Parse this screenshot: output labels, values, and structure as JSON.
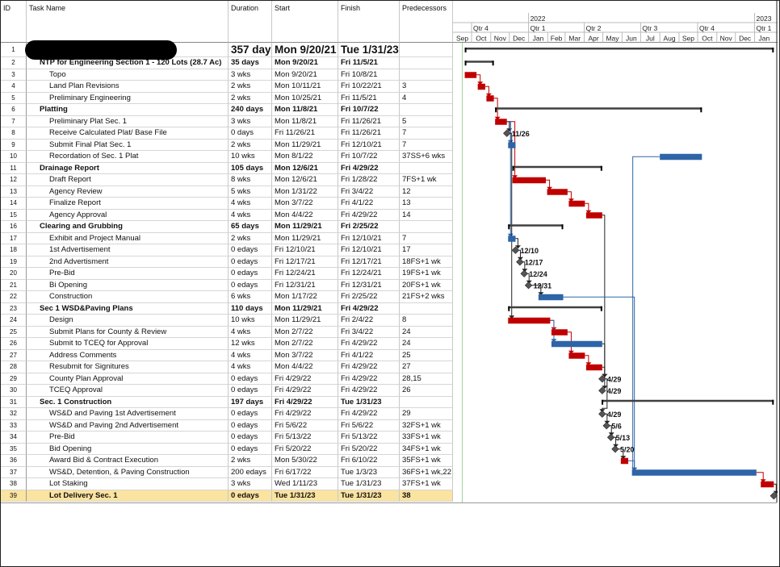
{
  "columns": {
    "id": "ID",
    "name": "Task Name",
    "duration": "Duration",
    "start": "Start",
    "finish": "Finish",
    "predecessors": "Predecessors"
  },
  "timescale": {
    "years": [
      {
        "label": "2022",
        "month_index": 4
      },
      {
        "label": "2023",
        "month_index": 16
      }
    ],
    "quarters": [
      {
        "label": "Qtr 4",
        "month_index": 1
      },
      {
        "label": "Qtr 1",
        "month_index": 4
      },
      {
        "label": "Qtr 2",
        "month_index": 7
      },
      {
        "label": "Qtr 3",
        "month_index": 10
      },
      {
        "label": "Qtr 4",
        "month_index": 13
      },
      {
        "label": "Qtr 1",
        "month_index": 16
      }
    ],
    "months": [
      "Sep",
      "Oct",
      "Nov",
      "Dec",
      "Jan",
      "Feb",
      "Mar",
      "Apr",
      "May",
      "Jun",
      "Jul",
      "Aug",
      "Sep",
      "Oct",
      "Nov",
      "Dec",
      "Jan"
    ],
    "first_month": "9/1/21"
  },
  "colors": {
    "critical": "#c00000",
    "normal": "#2e64a8",
    "summary": "#404040",
    "milestone": "#555555",
    "highlight": "#fbe3a0",
    "status_line": "#9fd49f"
  },
  "tasks": [
    {
      "id": "1",
      "name": "",
      "redacted": true,
      "duration": "357 days",
      "start": "Mon 9/20/21",
      "finish": "Tue 1/31/23",
      "pred": "",
      "level": 0,
      "type": "summary"
    },
    {
      "id": "2",
      "name": "NTP for Engineering Section 1 - 120 Lots (28.7 Ac)",
      "duration": "35 days",
      "start": "Mon 9/20/21",
      "finish": "Fri 11/5/21",
      "pred": "",
      "level": 1,
      "type": "summary"
    },
    {
      "id": "3",
      "name": "Topo",
      "duration": "3 wks",
      "start": "Mon 9/20/21",
      "finish": "Fri 10/8/21",
      "pred": "",
      "level": 2,
      "type": "critical"
    },
    {
      "id": "4",
      "name": "Land Plan Revisions",
      "duration": "2 wks",
      "start": "Mon 10/11/21",
      "finish": "Fri 10/22/21",
      "pred": "3",
      "level": 2,
      "type": "critical"
    },
    {
      "id": "5",
      "name": "Preliminary Engineering",
      "duration": "2 wks",
      "start": "Mon 10/25/21",
      "finish": "Fri 11/5/21",
      "pred": "4",
      "level": 2,
      "type": "critical"
    },
    {
      "id": "6",
      "name": "Platting",
      "duration": "240 days",
      "start": "Mon 11/8/21",
      "finish": "Fri 10/7/22",
      "pred": "",
      "level": 1,
      "type": "summary"
    },
    {
      "id": "7",
      "name": "Preliminary Plat Sec. 1",
      "duration": "3 wks",
      "start": "Mon 11/8/21",
      "finish": "Fri 11/26/21",
      "pred": "5",
      "level": 2,
      "type": "critical"
    },
    {
      "id": "8",
      "name": "Receive Calculated Plat/ Base File",
      "duration": "0 days",
      "start": "Fri 11/26/21",
      "finish": "Fri 11/26/21",
      "pred": "7",
      "level": 2,
      "type": "milestone",
      "label": "11/26"
    },
    {
      "id": "9",
      "name": "Submit Final Plat Sec. 1",
      "duration": "2 wks",
      "start": "Mon 11/29/21",
      "finish": "Fri 12/10/21",
      "pred": "7",
      "level": 2,
      "type": "normal"
    },
    {
      "id": "10",
      "name": "Recordation of Sec. 1 Plat",
      "duration": "10 wks",
      "start": "Mon 8/1/22",
      "finish": "Fri 10/7/22",
      "pred": "37SS+6 wks",
      "level": 2,
      "type": "normal"
    },
    {
      "id": "11",
      "name": "Drainage Report",
      "duration": "105 days",
      "start": "Mon 12/6/21",
      "finish": "Fri 4/29/22",
      "pred": "",
      "level": 1,
      "type": "summary"
    },
    {
      "id": "12",
      "name": "Draft Report",
      "duration": "8 wks",
      "start": "Mon 12/6/21",
      "finish": "Fri 1/28/22",
      "pred": "7FS+1 wk",
      "level": 2,
      "type": "critical"
    },
    {
      "id": "13",
      "name": "Agency Review",
      "duration": "5 wks",
      "start": "Mon 1/31/22",
      "finish": "Fri 3/4/22",
      "pred": "12",
      "level": 2,
      "type": "critical"
    },
    {
      "id": "14",
      "name": "Finalize Report",
      "duration": "4 wks",
      "start": "Mon 3/7/22",
      "finish": "Fri 4/1/22",
      "pred": "13",
      "level": 2,
      "type": "critical"
    },
    {
      "id": "15",
      "name": "Agency Approval",
      "duration": "4 wks",
      "start": "Mon 4/4/22",
      "finish": "Fri 4/29/22",
      "pred": "14",
      "level": 2,
      "type": "critical"
    },
    {
      "id": "16",
      "name": "Clearing and Grubbing",
      "duration": "65 days",
      "start": "Mon 11/29/21",
      "finish": "Fri 2/25/22",
      "pred": "",
      "level": 1,
      "type": "summary"
    },
    {
      "id": "17",
      "name": "Exhibit and Project Manual",
      "duration": "2 wks",
      "start": "Mon 11/29/21",
      "finish": "Fri 12/10/21",
      "pred": "7",
      "level": 2,
      "type": "normal"
    },
    {
      "id": "18",
      "name": "1st Advertisement",
      "duration": "0 edays",
      "start": "Fri 12/10/21",
      "finish": "Fri 12/10/21",
      "pred": "17",
      "level": 2,
      "type": "milestone",
      "label": "12/10"
    },
    {
      "id": "19",
      "name": "2nd Advertisment",
      "duration": "0 edays",
      "start": "Fri 12/17/21",
      "finish": "Fri 12/17/21",
      "pred": "18FS+1 wk",
      "level": 2,
      "type": "milestone",
      "label": "12/17"
    },
    {
      "id": "20",
      "name": "Pre-Bid",
      "duration": "0 edays",
      "start": "Fri 12/24/21",
      "finish": "Fri 12/24/21",
      "pred": "19FS+1 wk",
      "level": 2,
      "type": "milestone",
      "label": "12/24"
    },
    {
      "id": "21",
      "name": "Bi Opening",
      "duration": "0 edays",
      "start": "Fri 12/31/21",
      "finish": "Fri 12/31/21",
      "pred": "20FS+1 wk",
      "level": 2,
      "type": "milestone",
      "label": "12/31"
    },
    {
      "id": "22",
      "name": "Construction",
      "duration": "6 wks",
      "start": "Mon 1/17/22",
      "finish": "Fri 2/25/22",
      "pred": "21FS+2 wks",
      "level": 2,
      "type": "normal"
    },
    {
      "id": "23",
      "name": "Sec 1 WSD&Paving Plans",
      "duration": "110 days",
      "start": "Mon 11/29/21",
      "finish": "Fri 4/29/22",
      "pred": "",
      "level": 1,
      "type": "summary"
    },
    {
      "id": "24",
      "name": "Design",
      "duration": "10 wks",
      "start": "Mon 11/29/21",
      "finish": "Fri 2/4/22",
      "pred": "8",
      "level": 2,
      "type": "critical"
    },
    {
      "id": "25",
      "name": "Submit Plans for County & Review",
      "duration": "4 wks",
      "start": "Mon 2/7/22",
      "finish": "Fri 3/4/22",
      "pred": "24",
      "level": 2,
      "type": "critical"
    },
    {
      "id": "26",
      "name": "Submit to TCEQ for Approval",
      "duration": "12 wks",
      "start": "Mon 2/7/22",
      "finish": "Fri 4/29/22",
      "pred": "24",
      "level": 2,
      "type": "normal"
    },
    {
      "id": "27",
      "name": "Address Comments",
      "duration": "4 wks",
      "start": "Mon 3/7/22",
      "finish": "Fri 4/1/22",
      "pred": "25",
      "level": 2,
      "type": "critical"
    },
    {
      "id": "28",
      "name": "Resubmit for Signitures",
      "duration": "4 wks",
      "start": "Mon 4/4/22",
      "finish": "Fri 4/29/22",
      "pred": "27",
      "level": 2,
      "type": "critical"
    },
    {
      "id": "29",
      "name": "County Plan Approval",
      "duration": "0 edays",
      "start": "Fri 4/29/22",
      "finish": "Fri 4/29/22",
      "pred": "28,15",
      "level": 2,
      "type": "milestone",
      "label": "4/29"
    },
    {
      "id": "30",
      "name": "TCEQ Approval",
      "duration": "0 edays",
      "start": "Fri 4/29/22",
      "finish": "Fri 4/29/22",
      "pred": "26",
      "level": 2,
      "type": "milestone",
      "label": "4/29"
    },
    {
      "id": "31",
      "name": "Sec. 1 Construction",
      "duration": "197 days",
      "start": "Fri 4/29/22",
      "finish": "Tue 1/31/23",
      "pred": "",
      "level": 1,
      "type": "summary"
    },
    {
      "id": "32",
      "name": "WS&D and Paving 1st Advertisement",
      "duration": "0 edays",
      "start": "Fri 4/29/22",
      "finish": "Fri 4/29/22",
      "pred": "29",
      "level": 2,
      "type": "milestone",
      "label": "4/29"
    },
    {
      "id": "33",
      "name": "WS&D and Paving 2nd Advertisement",
      "duration": "0 edays",
      "start": "Fri 5/6/22",
      "finish": "Fri 5/6/22",
      "pred": "32FS+1 wk",
      "level": 2,
      "type": "milestone",
      "label": "5/6"
    },
    {
      "id": "34",
      "name": "Pre-Bid",
      "duration": "0 edays",
      "start": "Fri 5/13/22",
      "finish": "Fri 5/13/22",
      "pred": "33FS+1 wk",
      "level": 2,
      "type": "milestone",
      "label": "5/13"
    },
    {
      "id": "35",
      "name": "Bid Opening",
      "duration": "0 edays",
      "start": "Fri 5/20/22",
      "finish": "Fri 5/20/22",
      "pred": "34FS+1 wk",
      "level": 2,
      "type": "milestone",
      "label": "5/20"
    },
    {
      "id": "36",
      "name": "Award Bid & Contract Execution",
      "duration": "2 wks",
      "start": "Mon 5/30/22",
      "finish": "Fri 6/10/22",
      "pred": "35FS+1 wk",
      "level": 2,
      "type": "critical"
    },
    {
      "id": "37",
      "name": "WS&D, Detention, & Paving Construction",
      "duration": "200 edays",
      "start": "Fri 6/17/22",
      "finish": "Tue 1/3/23",
      "pred": "36FS+1 wk,22",
      "level": 2,
      "type": "normal"
    },
    {
      "id": "38",
      "name": "Lot Staking",
      "duration": "3 wks",
      "start": "Wed 1/11/23",
      "finish": "Tue 1/31/23",
      "pred": "37FS+1 wk",
      "level": 2,
      "type": "critical"
    },
    {
      "id": "39",
      "name": "Lot Delivery Sec. 1",
      "duration": "0 edays",
      "start": "Tue 1/31/23",
      "finish": "Tue 1/31/23",
      "pred": "38",
      "level": 2,
      "type": "milestone",
      "highlight": true,
      "bold": true
    }
  ],
  "links": [
    [
      3,
      4
    ],
    [
      4,
      5
    ],
    [
      5,
      7
    ],
    [
      7,
      8
    ],
    [
      7,
      9
    ],
    [
      37,
      10
    ],
    [
      7,
      12
    ],
    [
      12,
      13
    ],
    [
      13,
      14
    ],
    [
      14,
      15
    ],
    [
      7,
      17
    ],
    [
      17,
      18
    ],
    [
      18,
      19
    ],
    [
      19,
      20
    ],
    [
      20,
      21
    ],
    [
      21,
      22
    ],
    [
      8,
      24
    ],
    [
      24,
      25
    ],
    [
      24,
      26
    ],
    [
      25,
      27
    ],
    [
      27,
      28
    ],
    [
      28,
      29
    ],
    [
      15,
      29
    ],
    [
      26,
      30
    ],
    [
      29,
      32
    ],
    [
      32,
      33
    ],
    [
      33,
      34
    ],
    [
      34,
      35
    ],
    [
      35,
      36
    ],
    [
      36,
      37
    ],
    [
      22,
      37
    ],
    [
      37,
      38
    ],
    [
      38,
      39
    ]
  ]
}
